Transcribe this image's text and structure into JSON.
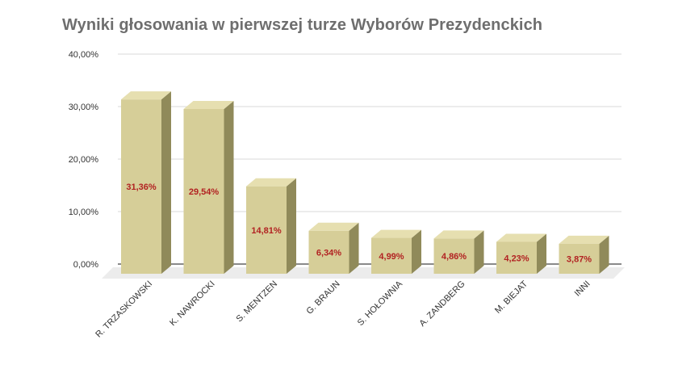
{
  "chart_data": {
    "type": "bar",
    "title": "Wyniki głosowania w pierwszej turze Wyborów Prezydenckich",
    "categories": [
      "R. TRZASKOWSKI",
      "K. NAWROCKI",
      "S. MENTZEN",
      "G. BRAUN",
      "S. HOŁOWNIA",
      "A. ZANDBERG",
      "M. BIEJAT",
      "INNI"
    ],
    "values": [
      31.36,
      29.54,
      14.81,
      6.34,
      4.99,
      4.86,
      4.23,
      3.87
    ],
    "value_labels": [
      "31,36%",
      "29,54%",
      "14,81%",
      "6,34%",
      "4,99%",
      "4,86%",
      "4,23%",
      "3,87%"
    ],
    "ylim": [
      0,
      40
    ],
    "y_ticks": [
      0,
      10,
      20,
      30,
      40
    ],
    "y_tick_labels": [
      "0,00%",
      "10,00%",
      "20,00%",
      "30,00%",
      "40,00%"
    ],
    "xlabel": "",
    "ylabel": "",
    "grid": true,
    "style": "3d-columns",
    "colors": {
      "bar_front": "#d6ce98",
      "bar_top": "#e6dfb0",
      "bar_side": "#908a5a",
      "floor": "#ececec",
      "grid": "#d9d9d9",
      "value_label": "#b22222",
      "title": "#6e6e6e"
    }
  }
}
